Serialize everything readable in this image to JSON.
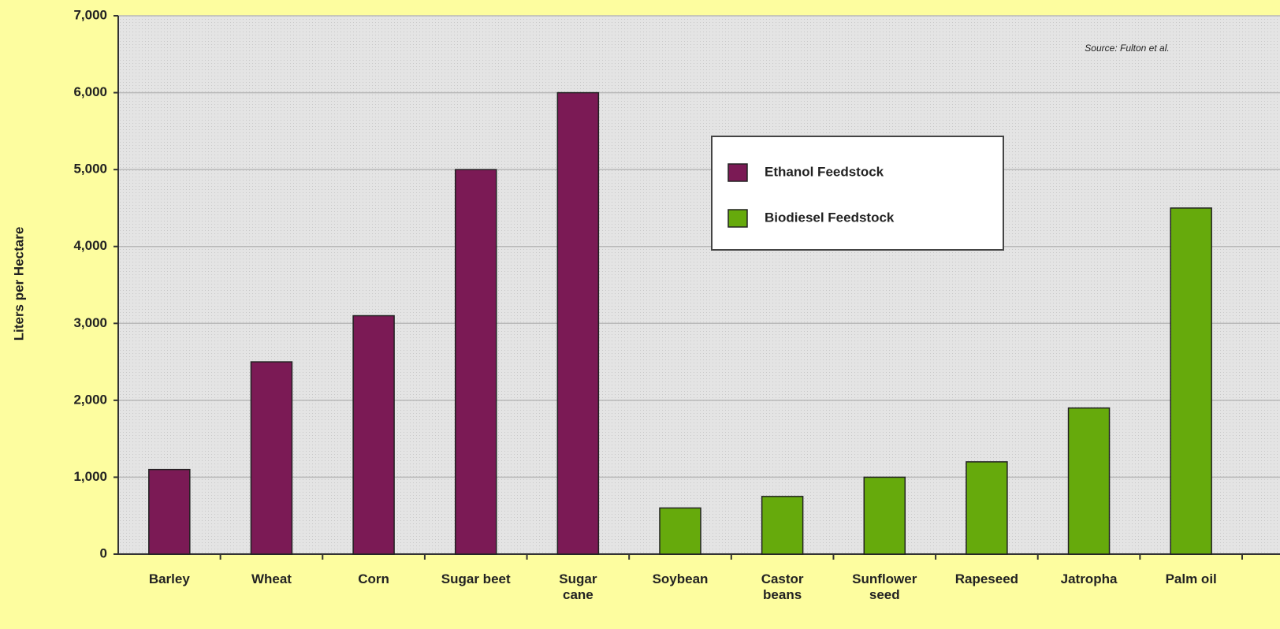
{
  "chart_data": {
    "type": "bar",
    "y_label": "Liters per Hectare",
    "annotation": "Source:  Fulton et al.",
    "categories": [
      "Barley",
      "Wheat",
      "Corn",
      "Sugar beet",
      "Sugar\ncane",
      "Soybean",
      "Castor\nbeans",
      "Sunflower\nseed",
      "Rapeseed",
      "Jatropha",
      "Palm oil"
    ],
    "series": [
      {
        "name": "Ethanol Feedstock",
        "color": "#7b1a55",
        "values": [
          1100,
          2500,
          3100,
          5000,
          6000,
          null,
          null,
          null,
          null,
          null,
          null
        ]
      },
      {
        "name": "Biodiesel Feedstock",
        "color": "#66aa0c",
        "values": [
          null,
          null,
          null,
          null,
          null,
          600,
          750,
          1000,
          1200,
          1900,
          4500
        ]
      }
    ],
    "ylim": [
      0,
      7000
    ],
    "yticks": [
      0,
      {
        "value": 1000,
        "label": "1,000"
      },
      {
        "value": 2000,
        "label": "2,000"
      },
      {
        "value": 3000,
        "label": "3,000"
      },
      {
        "value": 4000,
        "label": "4,000"
      },
      {
        "value": 5000,
        "label": "5,000"
      },
      {
        "value": 6000,
        "label": "6,000"
      },
      {
        "value": 7000,
        "label": "7,000"
      }
    ],
    "grid": true,
    "legend": "top-center"
  }
}
